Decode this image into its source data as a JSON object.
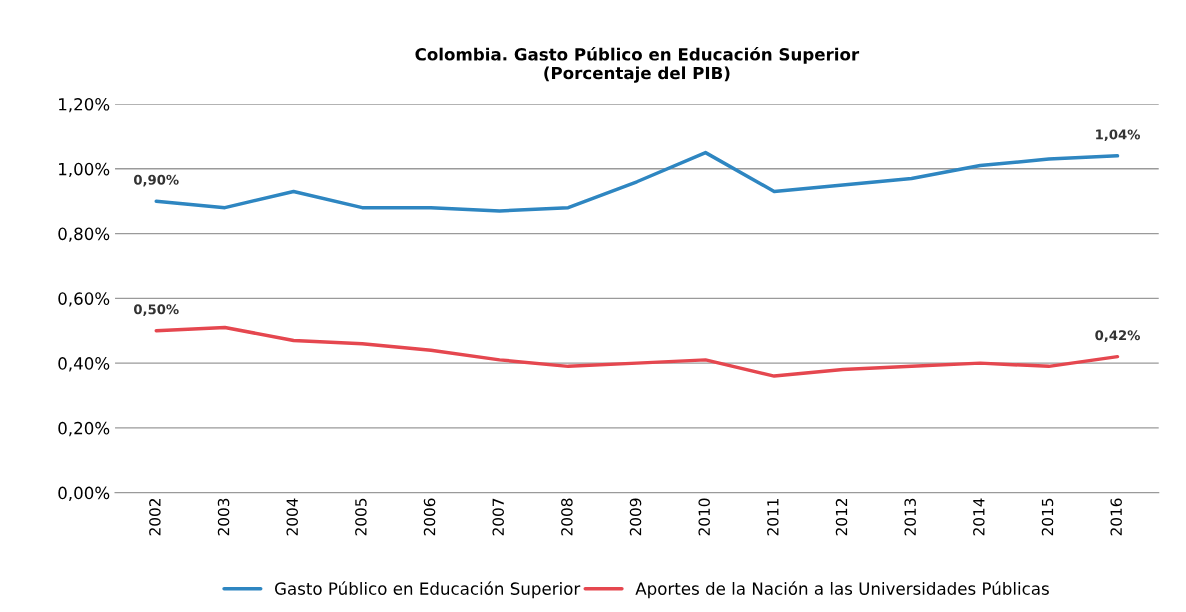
{
  "chart_data": {
    "type": "line",
    "title": "Colombia. Gasto Público en Educación Superior\n(Porcentaje del PIB)",
    "categories": [
      "2002",
      "2003",
      "2004",
      "2005",
      "2006",
      "2007",
      "2008",
      "2009",
      "2010",
      "2011",
      "2012",
      "2013",
      "2014",
      "2015",
      "2016"
    ],
    "series": [
      {
        "name": "Gasto Público en Educación Superior",
        "color": "#2e86c1",
        "values": [
          0.9,
          0.88,
          0.93,
          0.88,
          0.88,
          0.87,
          0.88,
          0.96,
          1.05,
          0.93,
          0.95,
          0.97,
          1.01,
          1.03,
          1.04
        ],
        "value_labels": [
          "0,90%",
          null,
          null,
          null,
          null,
          null,
          null,
          null,
          null,
          null,
          null,
          null,
          null,
          null,
          "1,04%"
        ]
      },
      {
        "name": "Aportes de la Nación a las Universidades Públicas",
        "color": "#e5474f",
        "values": [
          0.5,
          0.51,
          0.47,
          0.46,
          0.44,
          0.41,
          0.39,
          0.4,
          0.41,
          0.36,
          0.38,
          0.39,
          0.4,
          0.39,
          0.42
        ],
        "value_labels": [
          "0,50%",
          null,
          null,
          null,
          null,
          null,
          null,
          null,
          null,
          null,
          null,
          null,
          null,
          null,
          "0,42%"
        ]
      }
    ],
    "ylim": [
      0,
      1.2
    ],
    "yticks": [
      {
        "value": 0,
        "label": "0,00%"
      },
      {
        "value": 0.2,
        "label": "0,20%"
      },
      {
        "value": 0.4,
        "label": "0,40%"
      },
      {
        "value": 0.6,
        "label": "0,60%"
      },
      {
        "value": 0.8,
        "label": "0,80%"
      },
      {
        "value": 1.0,
        "label": "1,00%"
      },
      {
        "value": 1.2,
        "label": "1,20%"
      }
    ],
    "grid": "y",
    "legend": "bottom",
    "marker": "none",
    "line_style": "solid"
  }
}
